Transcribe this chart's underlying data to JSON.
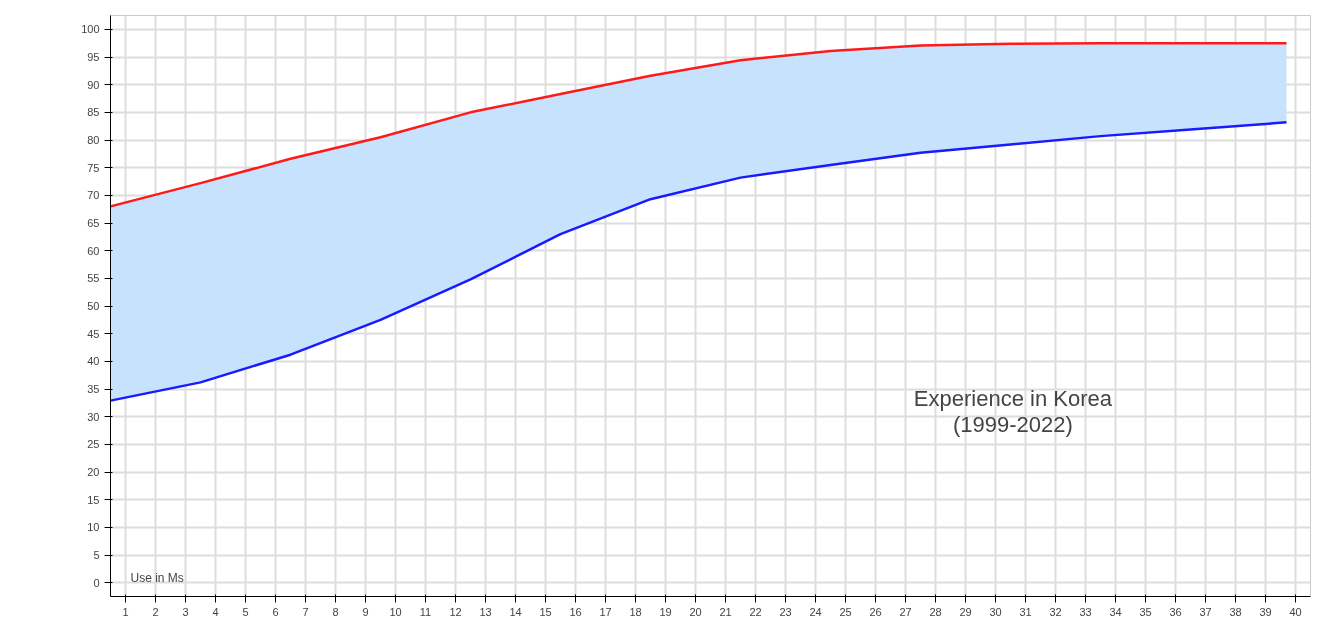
{
  "chart_data": {
    "type": "line",
    "xlabel": "Use in Ms",
    "annotations": [
      "Experience in Korea",
      "(1999-2022)"
    ],
    "xlim": [
      0,
      40
    ],
    "xticks": [
      {
        "value": 0.5,
        "label": "1"
      },
      {
        "value": 1.5,
        "label": "2"
      },
      {
        "value": 2.5,
        "label": "3"
      },
      {
        "value": 3.5,
        "label": "4"
      },
      {
        "value": 4.5,
        "label": "5"
      },
      {
        "value": 5.5,
        "label": "6"
      },
      {
        "value": 6.5,
        "label": "7"
      },
      {
        "value": 7.5,
        "label": "8"
      },
      {
        "value": 8.5,
        "label": "9"
      },
      {
        "value": 9.5,
        "label": "10"
      },
      {
        "value": 10.5,
        "label": "11"
      },
      {
        "value": 11.5,
        "label": "12"
      },
      {
        "value": 12.5,
        "label": "13"
      },
      {
        "value": 13.5,
        "label": "14"
      },
      {
        "value": 14.5,
        "label": "15"
      },
      {
        "value": 15.5,
        "label": "16"
      },
      {
        "value": 16.5,
        "label": "17"
      },
      {
        "value": 17.5,
        "label": "18"
      },
      {
        "value": 18.5,
        "label": "19"
      },
      {
        "value": 19.5,
        "label": "20"
      },
      {
        "value": 20.5,
        "label": "21"
      },
      {
        "value": 21.5,
        "label": "22"
      },
      {
        "value": 22.5,
        "label": "23"
      },
      {
        "value": 23.5,
        "label": "24"
      },
      {
        "value": 24.5,
        "label": "25"
      },
      {
        "value": 25.5,
        "label": "26"
      },
      {
        "value": 26.5,
        "label": "27"
      },
      {
        "value": 27.5,
        "label": "28"
      },
      {
        "value": 28.5,
        "label": "29"
      },
      {
        "value": 29.5,
        "label": "30"
      },
      {
        "value": 30.5,
        "label": "31"
      },
      {
        "value": 31.5,
        "label": "32"
      },
      {
        "value": 32.5,
        "label": "33"
      },
      {
        "value": 33.5,
        "label": "34"
      },
      {
        "value": 34.5,
        "label": "35"
      },
      {
        "value": 35.5,
        "label": "36"
      },
      {
        "value": 36.5,
        "label": "37"
      },
      {
        "value": 37.5,
        "label": "38"
      },
      {
        "value": 38.5,
        "label": "39"
      },
      {
        "value": 39.5,
        "label": "40"
      }
    ],
    "ylim": [
      -2.5,
      102.5
    ],
    "yticks": [
      0,
      5,
      10,
      15,
      20,
      25,
      30,
      35,
      40,
      45,
      50,
      55,
      60,
      65,
      70,
      75,
      80,
      85,
      90,
      95,
      100
    ],
    "grid": true,
    "marker": "none",
    "line_style": "solid",
    "x": [
      0,
      3,
      6,
      9,
      12,
      15,
      18,
      21,
      24,
      27,
      30,
      33,
      36,
      39.2
    ],
    "series": [
      {
        "color": "#ff1a1a",
        "values": [
          68,
          72.2,
          76.6,
          80.5,
          85,
          88.3,
          91.6,
          94.4,
          96.1,
          97.1,
          97.4,
          97.5,
          97.5,
          97.5
        ],
        "lower": [
          32.9,
          36.2,
          41.2,
          47.5,
          54.8,
          63,
          69.3,
          73.2,
          75.5,
          77.7,
          79.2,
          80.7,
          81.9,
          83.2
        ],
        "upper": [
          68,
          72.2,
          76.6,
          80.5,
          85,
          88.3,
          91.6,
          94.4,
          96.1,
          97.1,
          97.4,
          97.5,
          97.5,
          97.5
        ]
      },
      {
        "color": "#1a1aff",
        "values": [
          32.9,
          36.2,
          41.2,
          47.5,
          54.8,
          63,
          69.3,
          73.2,
          75.5,
          77.7,
          79.2,
          80.7,
          81.9,
          83.2
        ]
      }
    ]
  }
}
